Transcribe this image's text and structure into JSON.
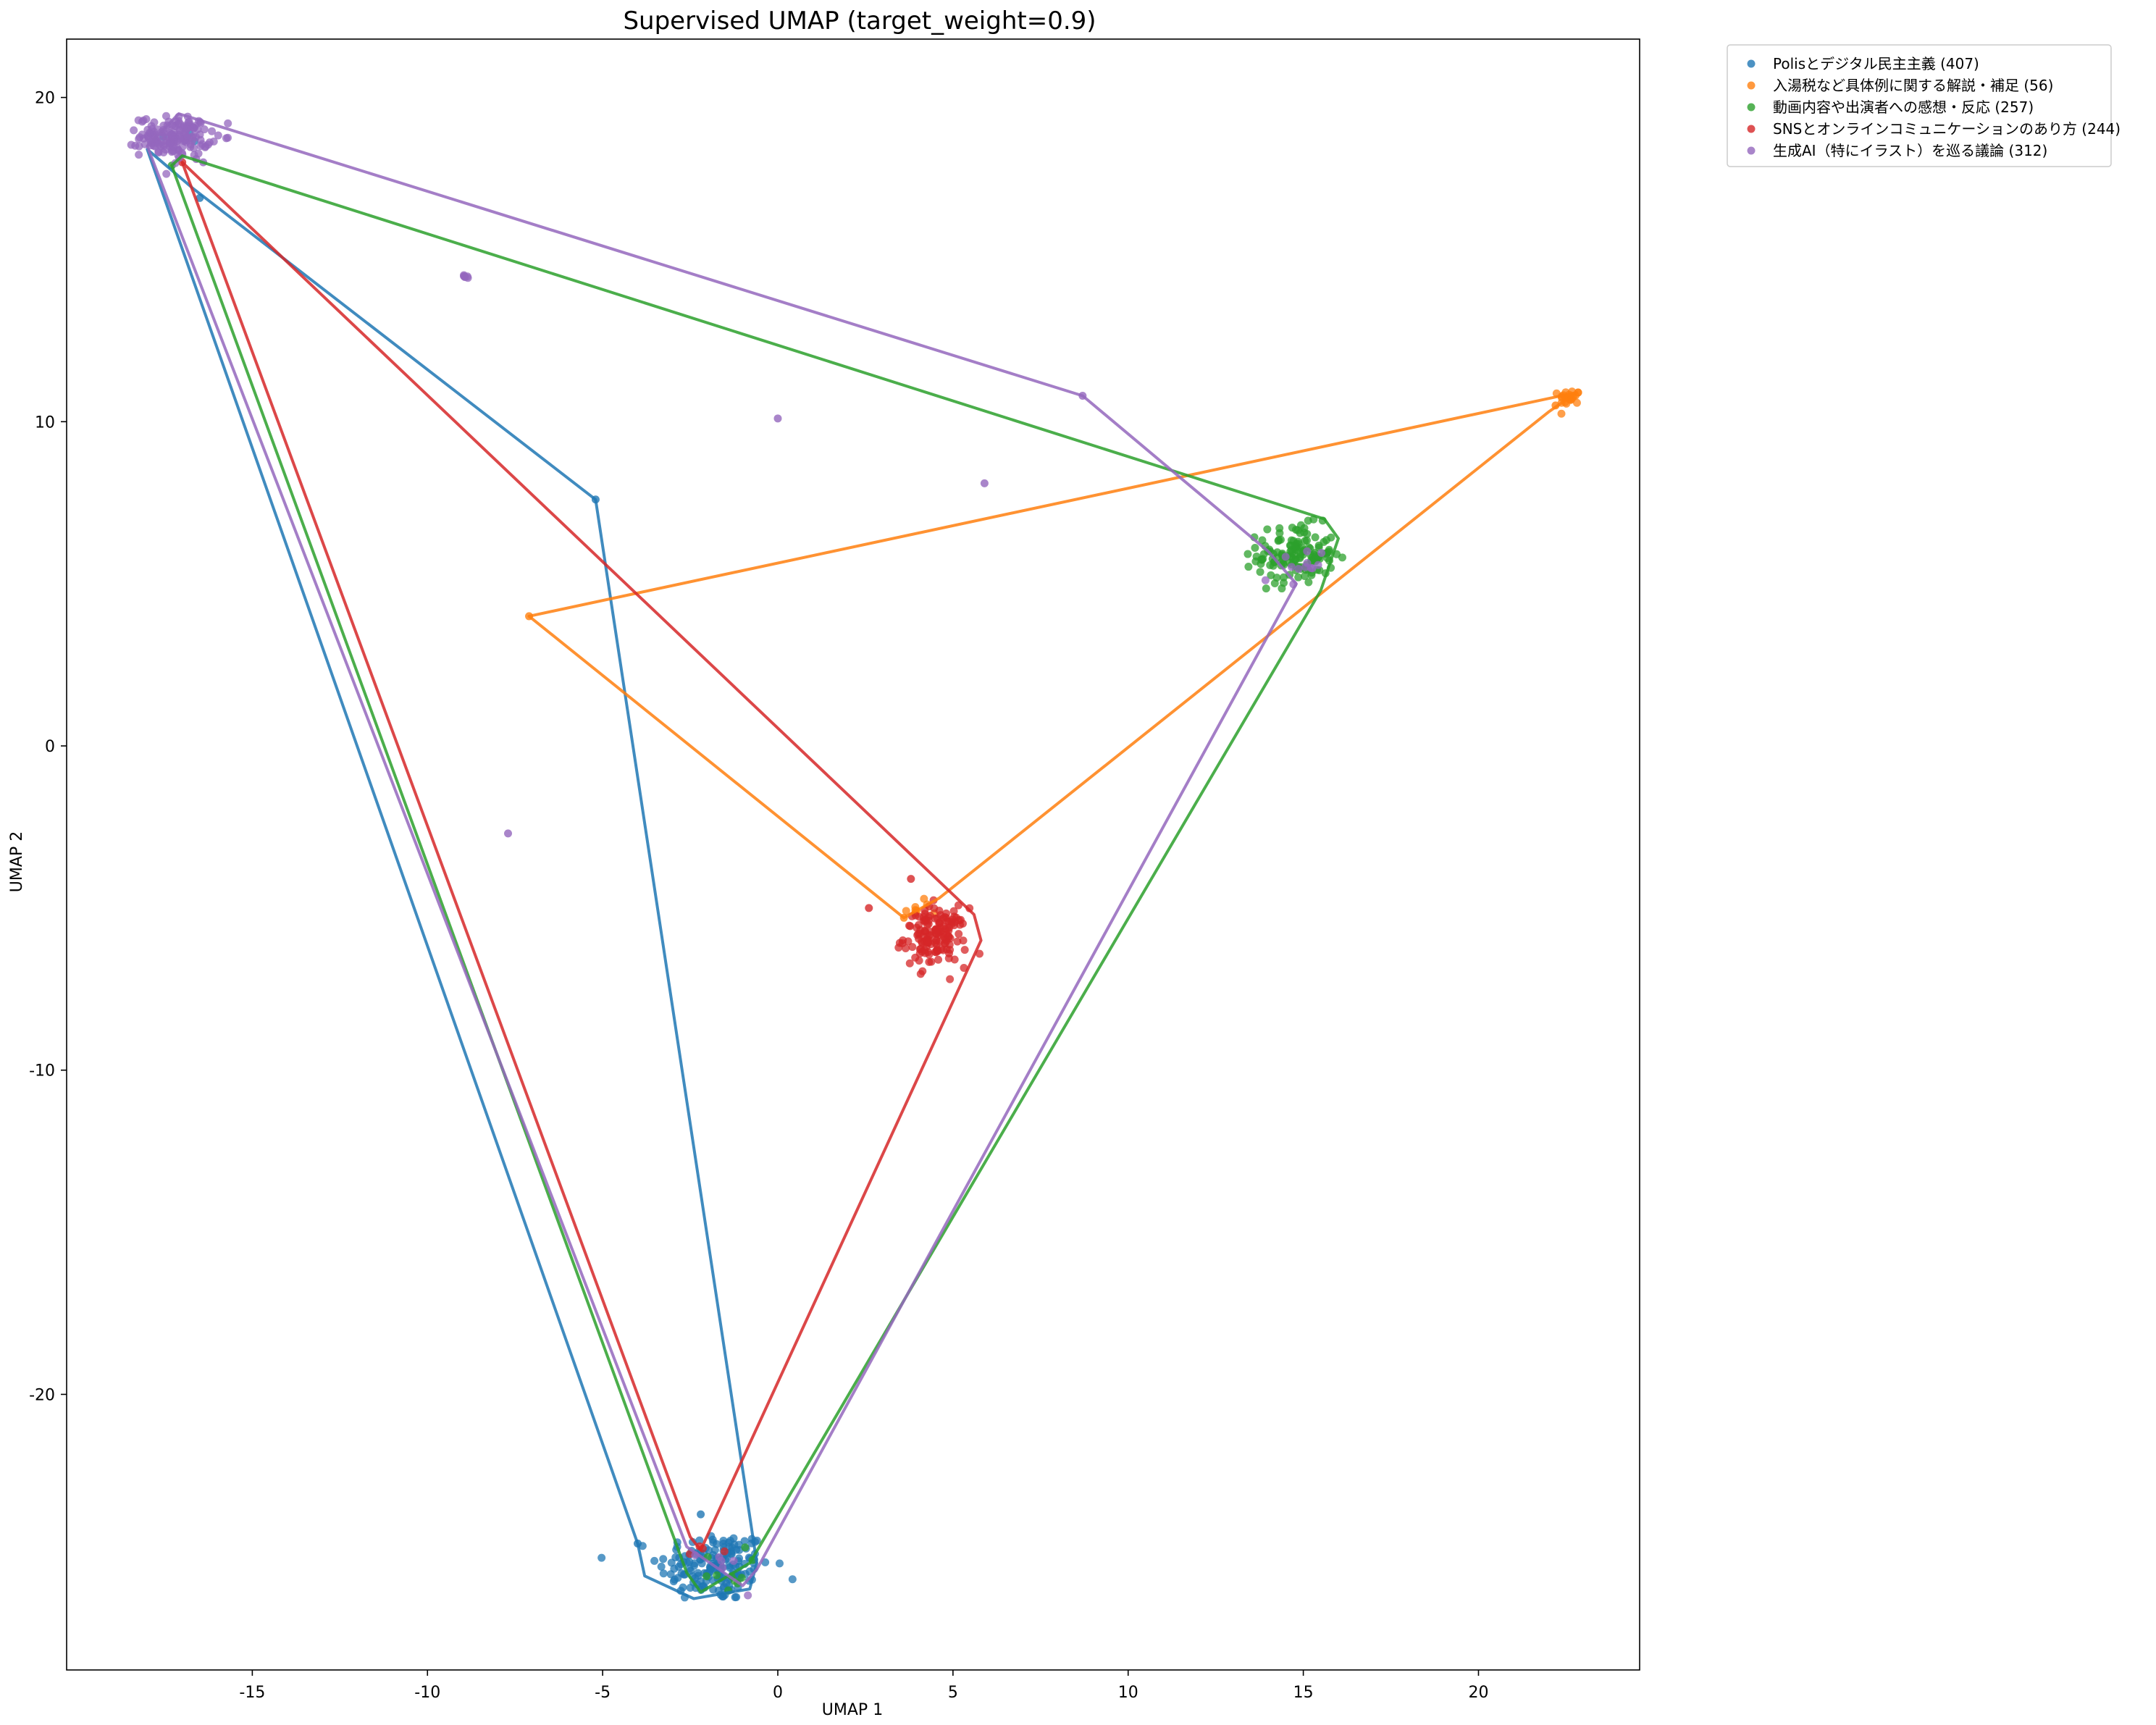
{
  "chart_data": {
    "type": "scatter",
    "title": "Supervised UMAP (target_weight=0.9)",
    "xlabel": "UMAP 1",
    "ylabel": "UMAP 2",
    "xlim": [
      -20.3,
      24.6
    ],
    "ylim": [
      -28.5,
      21.8
    ],
    "xticks": [
      -15,
      -10,
      -5,
      0,
      5,
      10,
      15,
      20
    ],
    "yticks": [
      -20,
      -10,
      0,
      10,
      20
    ],
    "grid": false,
    "legend_position": "upper-right-outside",
    "series": [
      {
        "name": "Polisとデジタル民主主義 (407)",
        "color": "#1f77b4",
        "clusters": [
          {
            "cx": -1.8,
            "cy": -25.3,
            "sx": 0.8,
            "sy": 0.55,
            "n": 170
          },
          {
            "cx": -16.8,
            "cy": 18.7,
            "sx": 0.45,
            "sy": 0.25,
            "n": 6
          }
        ],
        "points": [
          [
            -5.2,
            7.6
          ],
          [
            -16.5,
            16.9
          ],
          [
            -4,
            -24.6
          ],
          [
            -2.2,
            -23.7
          ]
        ],
        "hull": [
          [
            -18,
            18.4
          ],
          [
            -16.7,
            17.2
          ],
          [
            -5.2,
            7.6
          ],
          [
            -0.6,
            -25.2
          ],
          [
            -0.8,
            -26
          ],
          [
            -2.4,
            -26.3
          ],
          [
            -3.8,
            -25.6
          ],
          [
            -4,
            -24.6
          ]
        ]
      },
      {
        "name": "入湯税など具体例に関する解説・補足 (56)",
        "color": "#ff7f0e",
        "clusters": [
          {
            "cx": 22.6,
            "cy": 10.75,
            "sx": 0.15,
            "sy": 0.12,
            "n": 22
          },
          {
            "cx": 4.2,
            "cy": -5.0,
            "sx": 0.35,
            "sy": 0.2,
            "n": 8
          }
        ],
        "points": [
          [
            -7.1,
            4
          ],
          [
            22.2,
            10.5
          ],
          [
            3.6,
            -5.3
          ]
        ],
        "hull": [
          [
            -7.1,
            4
          ],
          [
            22.8,
            10.9
          ],
          [
            22,
            10.3
          ],
          [
            4.6,
            -4.7
          ],
          [
            3.6,
            -5.3
          ]
        ]
      },
      {
        "name": "動画内容や出演者への感想・反応 (257)",
        "color": "#2ca02c",
        "clusters": [
          {
            "cx": 14.8,
            "cy": 5.9,
            "sx": 0.55,
            "sy": 0.45,
            "n": 140
          },
          {
            "cx": -1.9,
            "cy": -25.4,
            "sx": 0.5,
            "sy": 0.35,
            "n": 10
          }
        ],
        "points": [
          [
            -17.3,
            17.9
          ]
        ],
        "hull": [
          [
            -17.3,
            17.9
          ],
          [
            -17,
            18.2
          ],
          [
            15.6,
            7
          ],
          [
            16,
            6.4
          ],
          [
            15.5,
            4.8
          ],
          [
            -0.8,
            -25.2
          ],
          [
            -2.2,
            -26.1
          ],
          [
            -2.6,
            -25.5
          ]
        ]
      },
      {
        "name": "SNSとオンラインコミュニケーションのあり方 (244)",
        "color": "#d62728",
        "clusters": [
          {
            "cx": 4.5,
            "cy": -5.9,
            "sx": 0.45,
            "sy": 0.45,
            "n": 150
          },
          {
            "cx": -2.1,
            "cy": -24.9,
            "sx": 0.3,
            "sy": 0.3,
            "n": 4
          }
        ],
        "points": [
          [
            2.6,
            -5
          ],
          [
            3.8,
            -4.1
          ],
          [
            -17,
            18
          ]
        ],
        "hull": [
          [
            -17,
            18
          ],
          [
            5.6,
            -5.2
          ],
          [
            5.8,
            -6
          ],
          [
            -2.2,
            -24.8
          ],
          [
            -2.5,
            -24.4
          ]
        ]
      },
      {
        "name": "生成AI（特にイラスト）を巡る議論 (312)",
        "color": "#9467bd",
        "clusters": [
          {
            "cx": -17.2,
            "cy": 18.8,
            "sx": 0.5,
            "sy": 0.3,
            "n": 160
          },
          {
            "cx": 14.7,
            "cy": 5.4,
            "sx": 0.4,
            "sy": 0.35,
            "n": 12
          },
          {
            "cx": -8.95,
            "cy": 14.45,
            "sx": 0.08,
            "sy": 0.05,
            "n": 6
          },
          {
            "cx": -1.4,
            "cy": -25.3,
            "sx": 0.4,
            "sy": 0.3,
            "n": 6
          }
        ],
        "points": [
          [
            0,
            10.1
          ],
          [
            5.9,
            8.1
          ],
          [
            -7.7,
            -2.7
          ],
          [
            8.7,
            10.8
          ],
          [
            -16.6,
            18.1
          ],
          [
            -16.4,
            18.0
          ]
        ],
        "hull": [
          [
            -18,
            18.5
          ],
          [
            -17.1,
            19.5
          ],
          [
            8.7,
            10.8
          ],
          [
            14,
            6
          ],
          [
            14.8,
            5
          ],
          [
            -0.6,
            -25.4
          ],
          [
            -1,
            -25.9
          ],
          [
            -2.6,
            -24.7
          ]
        ]
      }
    ]
  }
}
